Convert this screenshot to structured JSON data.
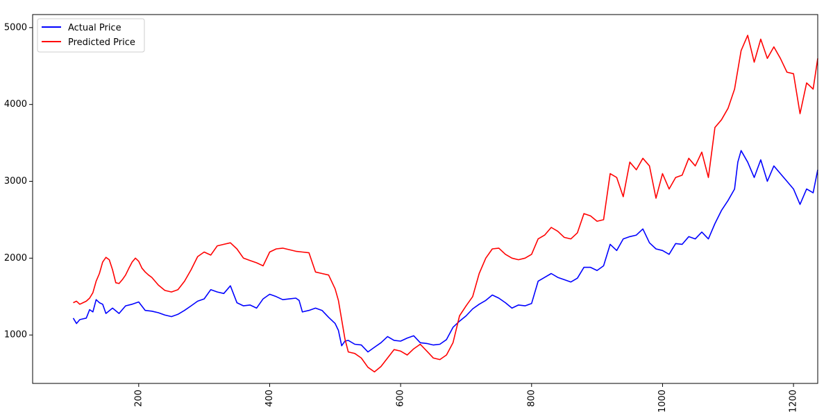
{
  "chart_data": {
    "type": "line",
    "title": "",
    "xlabel": "",
    "ylabel": "",
    "xlim": [
      38,
      1237
    ],
    "ylim": [
      370,
      5170
    ],
    "xticks": [
      200,
      400,
      600,
      800,
      1000,
      1200
    ],
    "xtick_labels": [
      "200",
      "400",
      "600",
      "800",
      "1000",
      "1200"
    ],
    "xtick_rotation": 90,
    "yticks": [
      1000,
      2000,
      3000,
      4000,
      5000
    ],
    "ytick_labels": [
      "1000",
      "2000",
      "3000",
      "4000",
      "5000"
    ],
    "grid": false,
    "legend_position": "upper left",
    "series": [
      {
        "name": "Actual Price",
        "color": "#0000ff",
        "x": [
          100,
          105,
          110,
          115,
          120,
          125,
          130,
          135,
          140,
          145,
          150,
          160,
          170,
          180,
          190,
          200,
          210,
          220,
          230,
          240,
          250,
          260,
          270,
          280,
          290,
          300,
          310,
          320,
          330,
          340,
          350,
          360,
          370,
          380,
          390,
          400,
          410,
          420,
          430,
          440,
          445,
          450,
          460,
          470,
          480,
          490,
          500,
          505,
          510,
          515,
          520,
          530,
          540,
          550,
          560,
          570,
          580,
          590,
          600,
          610,
          620,
          630,
          640,
          650,
          660,
          670,
          680,
          690,
          700,
          710,
          720,
          730,
          740,
          750,
          760,
          770,
          780,
          790,
          800,
          810,
          820,
          830,
          840,
          850,
          860,
          870,
          880,
          890,
          900,
          910,
          920,
          930,
          940,
          950,
          960,
          970,
          980,
          990,
          1000,
          1010,
          1020,
          1030,
          1040,
          1050,
          1060,
          1070,
          1080,
          1090,
          1100,
          1110,
          1115,
          1120,
          1130,
          1140,
          1150,
          1160,
          1170,
          1180,
          1190,
          1200,
          1210,
          1220,
          1230,
          1237
        ],
        "y": [
          1220,
          1150,
          1200,
          1210,
          1220,
          1330,
          1300,
          1460,
          1420,
          1400,
          1280,
          1350,
          1280,
          1380,
          1400,
          1430,
          1320,
          1310,
          1290,
          1260,
          1240,
          1270,
          1320,
          1380,
          1440,
          1470,
          1590,
          1560,
          1540,
          1640,
          1420,
          1380,
          1390,
          1350,
          1470,
          1530,
          1500,
          1460,
          1470,
          1480,
          1450,
          1300,
          1320,
          1350,
          1320,
          1230,
          1150,
          1060,
          860,
          920,
          930,
          880,
          870,
          780,
          840,
          900,
          980,
          930,
          920,
          960,
          990,
          900,
          890,
          870,
          880,
          940,
          1100,
          1180,
          1250,
          1340,
          1400,
          1450,
          1520,
          1480,
          1420,
          1350,
          1390,
          1380,
          1410,
          1700,
          1750,
          1800,
          1750,
          1720,
          1690,
          1740,
          1880,
          1880,
          1840,
          1900,
          2180,
          2100,
          2250,
          2280,
          2300,
          2380,
          2200,
          2120,
          2100,
          2050,
          2190,
          2180,
          2280,
          2250,
          2340,
          2250,
          2450,
          2620,
          2750,
          2900,
          3250,
          3400,
          3250,
          3050,
          3280,
          3000,
          3200,
          3100,
          3000,
          2900,
          2700,
          2900,
          2850,
          3150
        ]
      },
      {
        "name": "Predicted Price",
        "color": "#ff0000",
        "x": [
          100,
          105,
          110,
          115,
          120,
          125,
          130,
          135,
          140,
          145,
          150,
          155,
          160,
          165,
          170,
          175,
          180,
          185,
          190,
          195,
          200,
          205,
          210,
          215,
          220,
          230,
          240,
          250,
          260,
          270,
          280,
          290,
          300,
          310,
          320,
          330,
          340,
          350,
          360,
          370,
          380,
          390,
          400,
          410,
          420,
          430,
          440,
          450,
          460,
          470,
          480,
          490,
          500,
          505,
          510,
          515,
          520,
          530,
          540,
          550,
          560,
          570,
          580,
          590,
          600,
          610,
          620,
          630,
          640,
          650,
          660,
          670,
          680,
          690,
          700,
          710,
          720,
          730,
          740,
          750,
          760,
          770,
          780,
          790,
          800,
          810,
          820,
          830,
          840,
          850,
          860,
          870,
          880,
          890,
          900,
          910,
          920,
          930,
          940,
          950,
          960,
          970,
          980,
          990,
          1000,
          1010,
          1020,
          1030,
          1040,
          1050,
          1060,
          1070,
          1080,
          1090,
          1100,
          1110,
          1120,
          1130,
          1140,
          1150,
          1160,
          1170,
          1180,
          1190,
          1200,
          1210,
          1220,
          1230,
          1237
        ],
        "y": [
          1420,
          1440,
          1400,
          1420,
          1440,
          1480,
          1550,
          1700,
          1800,
          1950,
          2010,
          1980,
          1850,
          1680,
          1670,
          1720,
          1780,
          1870,
          1950,
          2000,
          1960,
          1870,
          1820,
          1780,
          1750,
          1650,
          1580,
          1560,
          1590,
          1700,
          1850,
          2020,
          2080,
          2040,
          2160,
          2180,
          2200,
          2120,
          2000,
          1970,
          1940,
          1900,
          2080,
          2120,
          2130,
          2110,
          2090,
          2080,
          2070,
          1820,
          1800,
          1780,
          1600,
          1450,
          1200,
          950,
          780,
          760,
          700,
          580,
          520,
          590,
          700,
          810,
          790,
          740,
          820,
          880,
          790,
          700,
          680,
          740,
          900,
          1250,
          1380,
          1500,
          1800,
          2000,
          2120,
          2130,
          2050,
          2000,
          1980,
          2000,
          2050,
          2250,
          2300,
          2400,
          2350,
          2270,
          2250,
          2330,
          2580,
          2550,
          2480,
          2500,
          3100,
          3050,
          2800,
          3250,
          3150,
          3300,
          3200,
          2780,
          3100,
          2900,
          3050,
          3080,
          3300,
          3200,
          3380,
          3050,
          3700,
          3800,
          3950,
          4200,
          4700,
          4900,
          4550,
          4850,
          4600,
          4750,
          4600,
          4420,
          4400,
          3880,
          4280,
          4200,
          4600
        ]
      }
    ]
  }
}
